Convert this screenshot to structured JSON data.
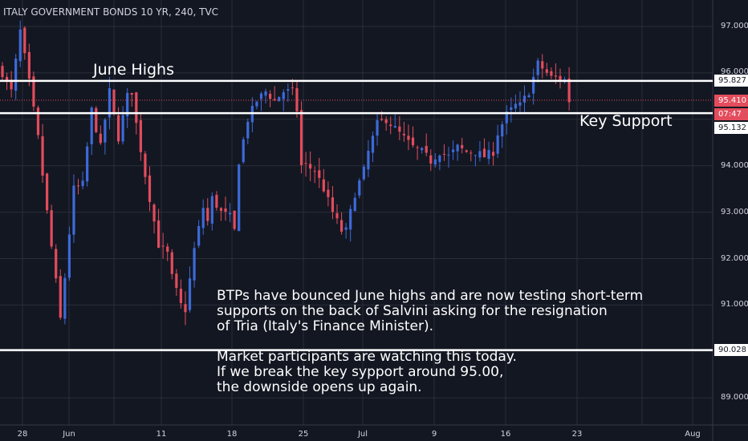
{
  "title": "ITALY GOVERNMENT BONDS 10 YR, 240, TVC",
  "colors": {
    "background": "#131722",
    "up": "#3c6ad8",
    "down": "#e34c5c",
    "grid": "#2a2e39",
    "text": "#d1d4dc"
  },
  "annotations": {
    "june_highs": "June Highs",
    "key_support": "Key Support",
    "note": "BTPs have bounced June highs and are now testing short-term\nsupports on the back of Salvini asking for the resignation\nof Tria (Italy's Finance Minister).\n\nMarket participants are watching this today.\nIf we break the key sypport around 95.00,\nthe downside opens up again."
  },
  "price_labels": {
    "upper_line": "95.827",
    "current": "95.410",
    "countdown": "07:47",
    "lower_line": "95.132",
    "bottom_line": "90.028"
  },
  "chart_data": {
    "type": "candlestick",
    "title": "ITALY GOVERNMENT BONDS 10 YR, 240, TVC",
    "ylim": [
      88.5,
      97.3
    ],
    "y_ticks": [
      "97.000",
      "96.000",
      "94.000",
      "93.000",
      "92.000",
      "91.000",
      "89.000"
    ],
    "x_ticks": [
      "28",
      "Jun",
      "11",
      "18",
      "25",
      "Jul",
      "9",
      "16",
      "23",
      "Aug"
    ],
    "horizontal_lines": [
      95.827,
      95.132,
      90.028
    ],
    "current_price": 95.41,
    "series_path": [
      [
        0,
        96.0
      ],
      [
        2,
        95.6
      ],
      [
        4,
        96.9
      ],
      [
        6,
        95.8
      ],
      [
        8,
        94.6
      ],
      [
        10,
        93.0
      ],
      [
        12,
        91.5
      ],
      [
        13,
        90.7
      ],
      [
        14,
        91.6
      ],
      [
        16,
        93.5
      ],
      [
        18,
        93.6
      ],
      [
        20,
        95.2
      ],
      [
        22,
        94.4
      ],
      [
        24,
        95.6
      ],
      [
        26,
        94.6
      ],
      [
        28,
        95.5
      ],
      [
        29,
        95.6
      ],
      [
        30,
        94.9
      ],
      [
        32,
        93.8
      ],
      [
        34,
        92.8
      ],
      [
        35,
        92.3
      ],
      [
        37,
        92.1
      ],
      [
        38,
        91.6
      ],
      [
        40,
        91.0
      ],
      [
        41,
        90.9
      ],
      [
        43,
        92.2
      ],
      [
        45,
        93.1
      ],
      [
        46,
        92.8
      ],
      [
        47,
        93.3
      ],
      [
        49,
        93.0
      ],
      [
        51,
        92.9
      ],
      [
        52,
        92.6
      ],
      [
        53,
        94.1
      ],
      [
        55,
        95.0
      ],
      [
        57,
        95.4
      ],
      [
        59,
        95.6
      ],
      [
        61,
        95.4
      ],
      [
        63,
        95.6
      ],
      [
        65,
        95.6
      ],
      [
        66,
        95.2
      ],
      [
        67,
        94.0
      ],
      [
        68,
        94.0
      ],
      [
        70,
        93.9
      ],
      [
        72,
        93.5
      ],
      [
        74,
        93.0
      ],
      [
        76,
        92.6
      ],
      [
        77,
        92.6
      ],
      [
        79,
        93.4
      ],
      [
        81,
        93.9
      ],
      [
        82,
        94.3
      ],
      [
        84,
        94.9
      ],
      [
        86,
        95.0
      ],
      [
        88,
        94.8
      ],
      [
        90,
        94.6
      ],
      [
        92,
        94.4
      ],
      [
        94,
        94.3
      ],
      [
        96,
        94.1
      ],
      [
        98,
        94.3
      ],
      [
        100,
        94.2
      ],
      [
        102,
        94.4
      ],
      [
        104,
        94.3
      ],
      [
        106,
        94.3
      ],
      [
        108,
        94.2
      ],
      [
        110,
        94.3
      ],
      [
        111,
        94.7
      ],
      [
        113,
        95.1
      ],
      [
        115,
        95.3
      ],
      [
        116,
        95.3
      ],
      [
        118,
        95.6
      ],
      [
        120,
        96.2
      ],
      [
        121,
        96.1
      ],
      [
        123,
        95.9
      ],
      [
        124,
        95.9
      ],
      [
        126,
        95.85
      ],
      [
        127,
        95.4
      ]
    ]
  }
}
